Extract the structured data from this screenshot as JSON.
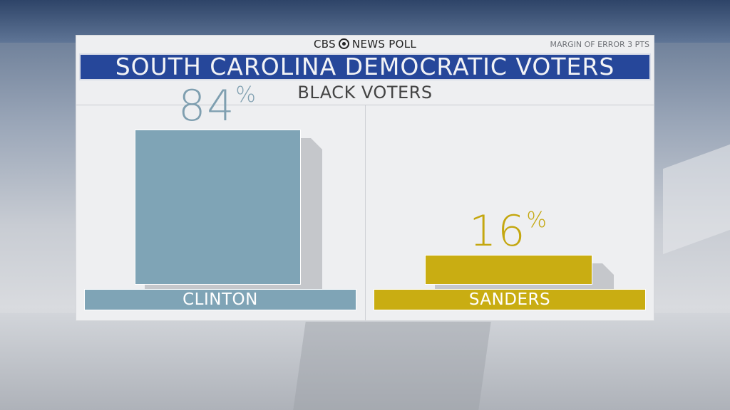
{
  "header": {
    "brand_left": "CBS",
    "brand_right": "NEWS POLL",
    "margin_of_error": "MARGIN OF ERROR 3 PTS",
    "title": "SOUTH CAROLINA DEMOCRATIC VOTERS",
    "subtitle": "BLACK VOTERS"
  },
  "colors": {
    "title_bg": "#26479a",
    "clinton": "#7fa4b6",
    "sanders": "#c9ad12"
  },
  "chart_data": {
    "type": "bar",
    "title": "SOUTH CAROLINA DEMOCRATIC VOTERS",
    "subtitle": "BLACK VOTERS",
    "categories": [
      "CLINTON",
      "SANDERS"
    ],
    "values": [
      84,
      16
    ],
    "value_labels": [
      "84",
      "16"
    ],
    "unit": "%",
    "ylim": [
      0,
      100
    ],
    "grid": false
  }
}
